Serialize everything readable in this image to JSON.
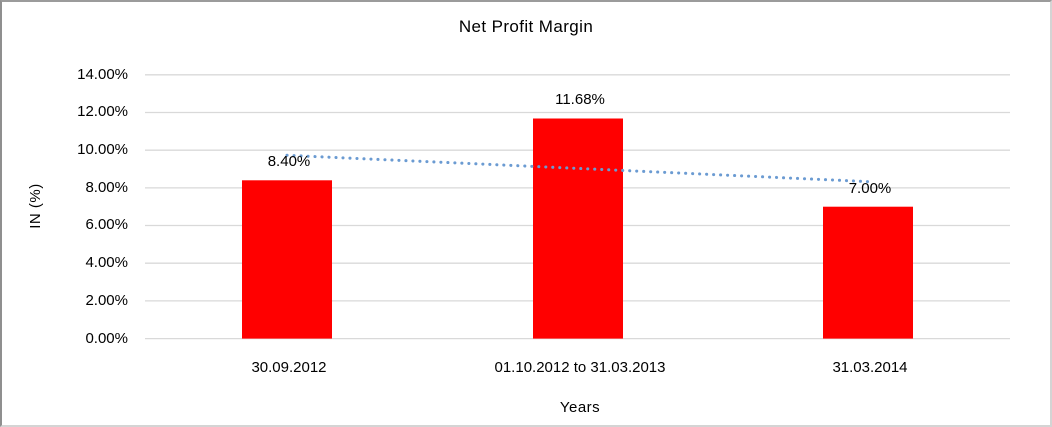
{
  "chart_data": {
    "type": "bar",
    "title": "Net Profit Margin",
    "xlabel": "Years",
    "ylabel": "IN (%)",
    "categories": [
      "30.09.2012",
      "01.10.2012 to 31.03.2013",
      "31.03.2014"
    ],
    "values": [
      8.4,
      11.68,
      7.0
    ],
    "data_labels": [
      "8.40%",
      "11.68%",
      "7.00%"
    ],
    "y_ticks": [
      "14.00%",
      "12.00%",
      "10.00%",
      "8.00%",
      "6.00%",
      "4.00%",
      "2.00%",
      "0.00%"
    ],
    "y_tick_values": [
      14,
      12,
      10,
      8,
      6,
      4,
      2,
      0
    ],
    "ylim": [
      0,
      14
    ],
    "grid": true,
    "legend_position": "none",
    "trendline": {
      "type": "linear",
      "style": "dotted",
      "trend_values": [
        9.73,
        9.03,
        8.33
      ]
    },
    "colors": {
      "bar": "#ff0000",
      "trendline": "#6b9bd2",
      "gridline": "#d9d9d9",
      "text": "#000000",
      "background": "#ffffff",
      "frame": "#c9c9c9"
    }
  }
}
